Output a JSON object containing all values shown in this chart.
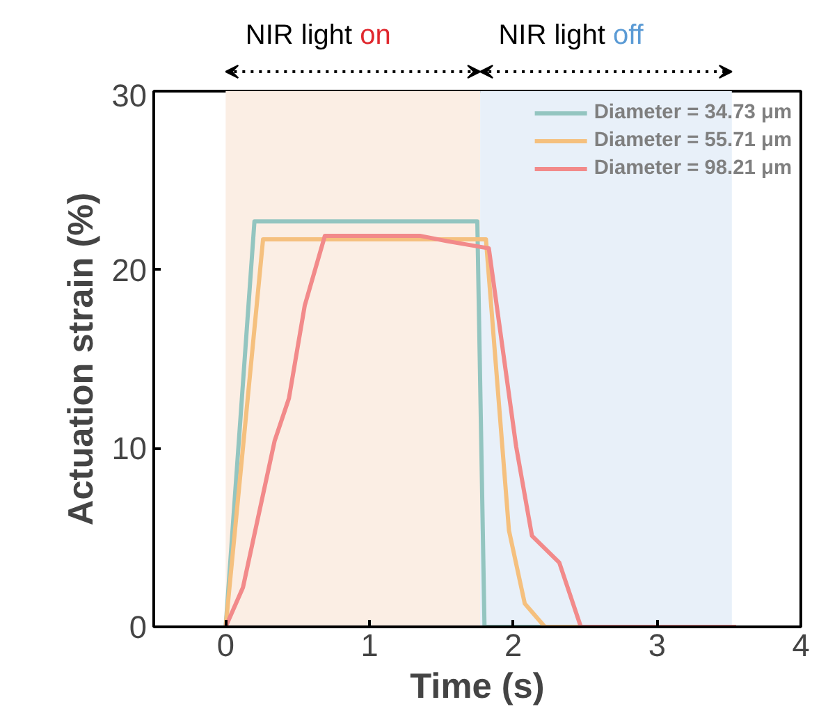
{
  "chart_data": {
    "type": "line",
    "xlabel": "Time (s)",
    "ylabel": "Actuation strain (%)",
    "xlim": [
      -0.5,
      4
    ],
    "xticks": [
      0,
      1,
      2,
      3,
      4
    ],
    "ylim": [
      0,
      30
    ],
    "yticks": [
      0,
      10,
      20,
      30
    ],
    "grid": false,
    "legend": "top right",
    "line_style": "solid",
    "marker": "none",
    "bands": [
      {
        "axis": "x",
        "from": 0,
        "to": 1.77,
        "label": "NIR light on",
        "color": "#fbeee4"
      },
      {
        "axis": "x",
        "from": 1.77,
        "to": 3.52,
        "label": "NIR light off",
        "color": "#e8f0f9"
      }
    ],
    "series": [
      {
        "name": "Diameter = 34.73 μm",
        "color": "#93c5c0",
        "x": [
          0,
          0.2,
          1.75,
          1.8,
          3.55
        ],
        "values": [
          0,
          22.7,
          22.7,
          0,
          0
        ]
      },
      {
        "name": "Diameter = 55.71 μm",
        "color": "#f5c07e",
        "x": [
          0,
          0.26,
          1.81,
          1.97,
          2.08,
          2.22,
          3.55
        ],
        "values": [
          0,
          21.7,
          21.7,
          5.4,
          1.3,
          0,
          0
        ]
      },
      {
        "name": "Diameter = 98.21 μm",
        "color": "#f28a8a",
        "x": [
          0,
          0.12,
          0.34,
          0.44,
          0.55,
          0.69,
          1.35,
          1.54,
          1.83,
          2.02,
          2.13,
          2.32,
          2.47,
          3.55
        ],
        "values": [
          0,
          2.2,
          10.4,
          12.8,
          18.0,
          21.9,
          21.9,
          21.6,
          21.2,
          10.1,
          5.1,
          3.6,
          0,
          0
        ]
      }
    ]
  }
}
